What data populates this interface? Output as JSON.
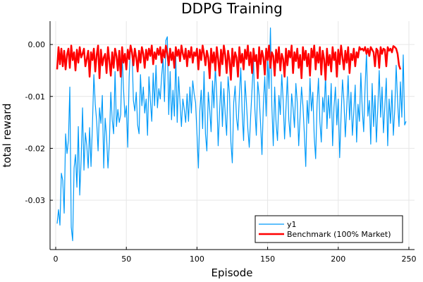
{
  "chart_data": {
    "type": "line",
    "title": "DDPG Training",
    "xlabel": "Episode",
    "ylabel": "total reward",
    "xlim": [
      -4,
      254
    ],
    "ylim": [
      -0.0395,
      0.0045
    ],
    "x_ticks": [
      0,
      50,
      100,
      150,
      200,
      250
    ],
    "x_tick_labels": [
      "0",
      "50",
      "100",
      "150",
      "200",
      "250"
    ],
    "y_ticks": [
      0.0,
      -0.01,
      -0.02,
      -0.03
    ],
    "y_tick_labels": [
      "0.00",
      "-0.01",
      "-0.02",
      "-0.03"
    ],
    "grid": true,
    "legend_position": "bottom-right",
    "series": [
      {
        "name": "y1",
        "color": "#009af9",
        "x_start": 1,
        "values": [
          -0.0345,
          -0.0318,
          -0.0348,
          -0.0248,
          -0.0262,
          -0.0325,
          -0.0172,
          -0.021,
          -0.0185,
          -0.0082,
          -0.0352,
          -0.0378,
          -0.0238,
          -0.0212,
          -0.0275,
          -0.0158,
          -0.029,
          -0.0222,
          -0.0122,
          -0.0242,
          -0.017,
          -0.0195,
          -0.0238,
          -0.016,
          -0.0235,
          -0.0155,
          -0.0058,
          -0.0115,
          -0.0148,
          -0.0205,
          -0.0122,
          -0.0152,
          -0.0098,
          -0.0238,
          -0.0142,
          -0.0178,
          -0.0238,
          -0.0188,
          -0.0092,
          -0.0145,
          -0.0172,
          -0.0052,
          -0.0158,
          -0.0125,
          -0.015,
          -0.0135,
          -0.002,
          -0.0085,
          -0.014,
          -0.0118,
          -0.0198,
          -0.0062,
          -0.0002,
          -0.001,
          -0.0108,
          -0.0128,
          -0.0092,
          -0.0155,
          -0.0172,
          -0.0058,
          -0.0118,
          -0.0082,
          -0.0132,
          -0.0105,
          -0.0175,
          -0.0062,
          -0.0108,
          -0.0148,
          -0.0055,
          -0.0118,
          -0.004,
          -0.0122,
          -0.0085,
          -0.0105,
          -0.006,
          -0.0028,
          -0.011,
          0.0008,
          0.0015,
          -0.0135,
          -0.0052,
          -0.0145,
          -0.0088,
          -0.0138,
          -0.0022,
          -0.015,
          -0.0062,
          -0.0112,
          -0.0158,
          -0.0105,
          -0.0125,
          -0.015,
          -0.0095,
          -0.0148,
          -0.0082,
          -0.0132,
          -0.007,
          -0.0095,
          -0.0112,
          -0.0172,
          -0.0238,
          -0.0128,
          -0.0088,
          -0.0162,
          -0.0052,
          -0.0172,
          -0.0205,
          -0.0092,
          -0.0125,
          -0.0168,
          -0.007,
          -0.0122,
          -0.0042,
          -0.0098,
          -0.0195,
          -0.0128,
          -0.0072,
          -0.0158,
          -0.0085,
          -0.0135,
          -0.0175,
          -0.0062,
          -0.0095,
          -0.0188,
          -0.0228,
          -0.0112,
          -0.008,
          -0.0142,
          -0.0165,
          -0.0098,
          -0.0045,
          -0.0132,
          -0.0185,
          -0.007,
          -0.0112,
          -0.0162,
          -0.0198,
          -0.0138,
          -0.0085,
          -0.0028,
          -0.0125,
          -0.0175,
          -0.0072,
          -0.0098,
          -0.0152,
          -0.0212,
          -0.0115,
          -0.0062,
          -0.0138,
          -0.0025,
          -0.0085,
          0.0032,
          -0.0118,
          -0.0195,
          -0.0082,
          -0.0152,
          -0.0185,
          -0.0098,
          -0.0135,
          -0.0058,
          -0.0108,
          -0.0182,
          -0.0122,
          -0.0062,
          -0.0145,
          -0.0178,
          -0.0095,
          -0.0122,
          -0.016,
          -0.0075,
          -0.0112,
          -0.0195,
          -0.0138,
          -0.0082,
          -0.0118,
          -0.0172,
          -0.0235,
          -0.0108,
          -0.0152,
          -0.0065,
          -0.0128,
          -0.0092,
          -0.0178,
          -0.022,
          -0.0115,
          -0.0065,
          -0.0148,
          -0.0188,
          -0.0102,
          -0.013,
          -0.0058,
          -0.0162,
          -0.0098,
          -0.0142,
          -0.0075,
          -0.0195,
          -0.012,
          -0.0082,
          -0.0155,
          -0.0105,
          -0.0218,
          -0.0138,
          -0.0068,
          -0.0108,
          -0.0178,
          -0.0122,
          -0.006,
          -0.0145,
          -0.0092,
          -0.0175,
          -0.013,
          -0.0078,
          -0.0188,
          -0.0115,
          -0.0148,
          -0.0055,
          -0.0125,
          -0.0168,
          -0.0082,
          -0.0015,
          -0.0138,
          -0.0108,
          -0.0192,
          -0.0075,
          -0.0158,
          -0.0098,
          -0.0188,
          -0.0122,
          -0.005,
          -0.014,
          -0.0082,
          -0.017,
          -0.0118,
          -0.0065,
          -0.0195,
          -0.0105,
          -0.0152,
          -0.0088,
          -0.0175,
          -0.0125,
          -0.004,
          -0.011,
          -0.0158,
          -0.0072,
          -0.014,
          -0.002,
          -0.0155,
          -0.0148
        ]
      },
      {
        "name": "Benchmark (100% Market)",
        "color": "#ff0000",
        "x_start": 1,
        "values": [
          -0.0048,
          -0.0005,
          -0.0038,
          -0.0008,
          -0.0042,
          -0.0012,
          -0.0048,
          -0.002,
          -0.0008,
          -0.0045,
          -0.0002,
          -0.003,
          -0.0015,
          -0.005,
          -0.001,
          -0.0035,
          -0.0005,
          -0.0025,
          -0.0018,
          -0.0008,
          -0.0042,
          -0.0028,
          -0.0012,
          -0.0062,
          -0.0015,
          -0.003,
          -0.0008,
          -0.0052,
          -0.002,
          -0.0002,
          -0.0065,
          -0.001,
          -0.004,
          -0.0025,
          -0.0018,
          -0.0055,
          -0.0005,
          -0.0032,
          -0.006,
          -0.0015,
          -0.0045,
          -0.0008,
          -0.0022,
          -0.005,
          -0.0012,
          -0.0062,
          -0.0005,
          -0.0035,
          -0.0018,
          -0.0048,
          -0.001,
          -0.0028,
          -0.0002,
          -0.0015,
          -0.004,
          -0.0008,
          -0.0025,
          -0.0052,
          -0.0012,
          -0.0035,
          -0.0005,
          -0.0018,
          -0.0045,
          -0.001,
          -0.003,
          -0.0008,
          -0.0022,
          -0.0002,
          -0.0038,
          -0.0015,
          -0.0028,
          -0.0008,
          -0.002,
          -0.0005,
          -0.0035,
          -0.001,
          -0.0025,
          -0.0002,
          -0.0018,
          -0.004,
          -0.0008,
          -0.003,
          -0.0015,
          -0.0045,
          -0.0005,
          -0.0022,
          -0.001,
          -0.0032,
          -0.0002,
          -0.0018,
          -0.0028,
          -0.0008,
          -0.0042,
          -0.0012,
          -0.0025,
          -0.0005,
          -0.0035,
          -0.0015,
          -0.0022,
          -0.0008,
          -0.0048,
          -0.001,
          -0.003,
          -0.0002,
          -0.0018,
          -0.004,
          -0.0012,
          -0.0025,
          -0.0065,
          -0.0008,
          -0.0035,
          -0.0015,
          -0.005,
          -0.0005,
          -0.0028,
          -0.006,
          -0.001,
          -0.0038,
          -0.0002,
          -0.002,
          -0.0055,
          -0.0012,
          -0.003,
          -0.0068,
          -0.0008,
          -0.0042,
          -0.0015,
          -0.0025,
          -0.0062,
          -0.0005,
          -0.0035,
          -0.0018,
          -0.0048,
          -0.001,
          -0.0028,
          -0.0002,
          -0.004,
          -0.0015,
          -0.0055,
          -0.0008,
          -0.0032,
          -0.002,
          -0.0065,
          -0.0005,
          -0.0038,
          -0.0012,
          -0.0025,
          -0.0058,
          -0.0008,
          -0.003,
          -0.0002,
          -0.0045,
          -0.0015,
          -0.0022,
          -0.006,
          -0.001,
          -0.0035,
          -0.0005,
          -0.005,
          -0.0018,
          -0.0028,
          -0.0062,
          -0.0008,
          -0.004,
          -0.0012,
          -0.0025,
          -0.0002,
          -0.0055,
          -0.0015,
          -0.0032,
          -0.0008,
          -0.0045,
          -0.002,
          -0.0065,
          -0.0005,
          -0.003,
          -0.0012,
          -0.0042,
          -0.0018,
          -0.006,
          -0.0008,
          -0.0025,
          -0.0002,
          -0.0048,
          -0.0015,
          -0.0035,
          -0.0005,
          -0.0058,
          -0.0012,
          -0.0028,
          -0.0068,
          -0.0008,
          -0.004,
          -0.002,
          -0.0052,
          -0.0005,
          -0.003,
          -0.0015,
          -0.0062,
          -0.001,
          -0.0038,
          -0.0002,
          -0.0025,
          -0.0048,
          -0.0012,
          -0.0035,
          -0.0005,
          -0.0055,
          -0.0018,
          -0.003,
          -0.0008,
          -0.0042,
          -0.0015,
          -0.0025,
          -0.0005,
          -0.001,
          -0.0008,
          -0.0012,
          -0.0005,
          -0.0018,
          -0.0008,
          -0.0022,
          -0.0005,
          -0.001,
          -0.0015,
          -0.0042,
          -0.0008,
          -0.0012,
          -0.0045,
          -0.0005,
          -0.0018,
          -0.0008,
          -0.001,
          -0.0042,
          -0.0005,
          -0.0012,
          -0.0008,
          -0.0015,
          -0.0003,
          -0.0005,
          -0.0008,
          -0.0018,
          -0.004,
          -0.0048
        ]
      }
    ]
  }
}
